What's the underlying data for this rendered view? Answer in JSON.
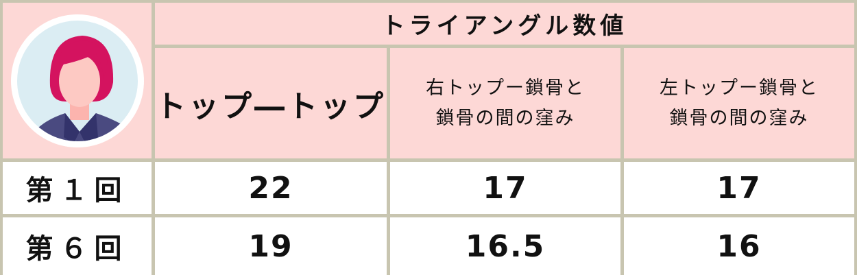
{
  "table": {
    "title": "トライアングル数値",
    "columns": [
      "トップ―トップ",
      "右トップー鎖骨と鎖骨の間の窪み",
      "左トップー鎖骨と鎖骨の間の窪み"
    ],
    "column_lines": [
      [
        "トップ―トップ"
      ],
      [
        "右トップー鎖骨と",
        "鎖骨の間の窪み"
      ],
      [
        "左トップー鎖骨と",
        "鎖骨の間の窪み"
      ]
    ],
    "rows": [
      {
        "label": "第１回",
        "values": [
          "22",
          "17",
          "17"
        ]
      },
      {
        "label": "第６回",
        "values": [
          "19",
          "16.5",
          "16"
        ]
      }
    ]
  },
  "avatar": {
    "icon": "woman-avatar-icon"
  },
  "colors": {
    "header_bg": "#fdd8d6",
    "border": "#c8c5b0",
    "hair": "#d4135f",
    "clothes": "#4a4a80"
  }
}
